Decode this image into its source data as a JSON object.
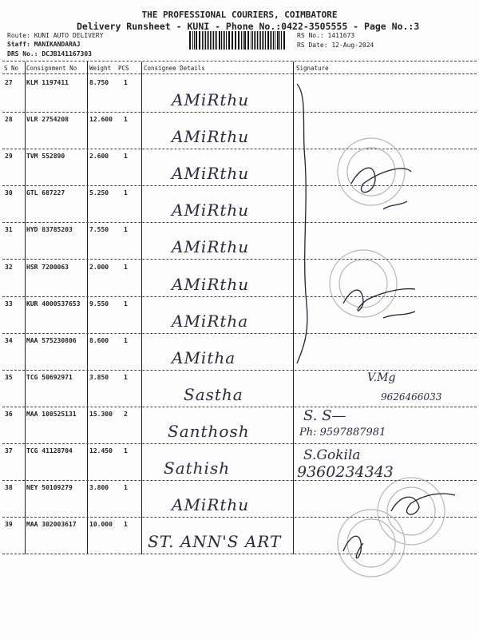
{
  "header": {
    "company": "THE PROFESSIONAL COURIERS, COIMBATORE",
    "subtitle": "Delivery Runsheet - KUNI - Phone No.:0422-3505555 - Page No.:3",
    "route": "Route: KUNI AUTO DELIVERY",
    "staff": "Staff: MANIKANDARAJ",
    "drs_no": "DRS No.: DCJB141167303",
    "rs_no": "RS No.: 1411673",
    "rs_date": "RS Date: 12-Aug-2024"
  },
  "columns": [
    "S No",
    "Consignment No",
    "Weight",
    "PCS",
    "Consignee Details",
    "Signature"
  ],
  "rows": [
    {
      "sno": "27",
      "consignment": "KLM 1197411",
      "weight": "8.750",
      "pcs": "1",
      "consignee": "AMiRthu"
    },
    {
      "sno": "28",
      "consignment": "VLR 2754208",
      "weight": "12.600",
      "pcs": "1",
      "consignee": "AMiRthu"
    },
    {
      "sno": "29",
      "consignment": "TVM 552890",
      "weight": "2.600",
      "pcs": "1",
      "consignee": "AMiRthu"
    },
    {
      "sno": "30",
      "consignment": "GTL 687227",
      "weight": "5.250",
      "pcs": "1",
      "consignee": "AMiRthu"
    },
    {
      "sno": "31",
      "consignment": "HYD 83785203",
      "weight": "7.550",
      "pcs": "1",
      "consignee": "AMiRthu"
    },
    {
      "sno": "32",
      "consignment": "HSR 7200063",
      "weight": "2.000",
      "pcs": "1",
      "consignee": "AMiRthu"
    },
    {
      "sno": "33",
      "consignment": "KUR 4000537653",
      "weight": "9.550",
      "pcs": "1",
      "consignee": "AMiRtha"
    },
    {
      "sno": "34",
      "consignment": "MAA 575230806",
      "weight": "8.600",
      "pcs": "1",
      "consignee": "AMitha"
    },
    {
      "sno": "35",
      "consignment": "TCG 50692971",
      "weight": "3.850",
      "pcs": "1",
      "consignee": "Sastha"
    },
    {
      "sno": "36",
      "consignment": "MAA 108525131",
      "weight": "15.300",
      "pcs": "2",
      "consignee": "Santhosh"
    },
    {
      "sno": "37",
      "consignment": "TCG 41128704",
      "weight": "12.450",
      "pcs": "1",
      "consignee": "Sathish"
    },
    {
      "sno": "38",
      "consignment": "NEY 50109279",
      "weight": "3.800",
      "pcs": "1",
      "consignee": "AMiRthu"
    },
    {
      "sno": "39",
      "consignment": "MAA 302003617",
      "weight": "10.000",
      "pcs": "1",
      "consignee": "ST. ANN'S ART"
    }
  ],
  "signatures": {
    "phone_35": "9626466033",
    "phone_36": "Ph: 9597887981",
    "name_37": "S.Gokila",
    "phone_37": "9360234343"
  }
}
